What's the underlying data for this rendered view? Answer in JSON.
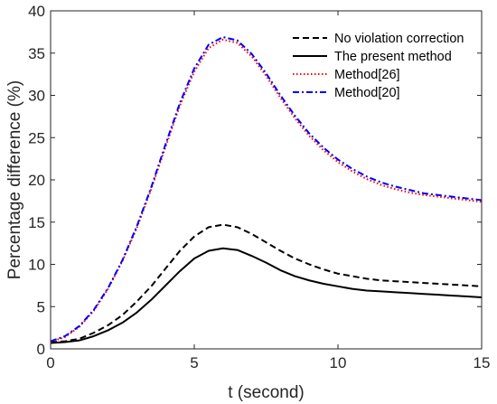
{
  "chart_data": {
    "type": "line",
    "xlabel": "t (second)",
    "ylabel": "Percentage difference (%)",
    "xlim": [
      0,
      15
    ],
    "ylim": [
      0,
      40
    ],
    "xticks": [
      0,
      5,
      10,
      15
    ],
    "yticks": [
      0,
      5,
      10,
      15,
      20,
      25,
      30,
      35,
      40
    ],
    "grid": false,
    "legend_position": "top-right",
    "series": [
      {
        "name": "No violation correction",
        "color": "#000000",
        "dash": "dashed",
        "x": [
          0,
          0.5,
          1,
          1.5,
          2,
          2.5,
          3,
          3.5,
          4,
          4.5,
          5,
          5.5,
          6,
          6.5,
          7,
          7.5,
          8,
          8.5,
          9,
          9.5,
          10,
          10.5,
          11,
          11.5,
          12,
          12.5,
          13,
          13.5,
          14,
          14.5,
          15
        ],
        "y": [
          0.8,
          0.9,
          1.2,
          1.9,
          2.8,
          4.0,
          5.6,
          7.4,
          9.5,
          11.6,
          13.3,
          14.4,
          14.7,
          14.4,
          13.6,
          12.6,
          11.6,
          10.7,
          10.0,
          9.4,
          8.9,
          8.6,
          8.3,
          8.1,
          8.0,
          7.9,
          7.8,
          7.7,
          7.6,
          7.5,
          7.4
        ]
      },
      {
        "name": "The present method",
        "color": "#000000",
        "dash": "solid",
        "x": [
          0,
          0.5,
          1,
          1.5,
          2,
          2.5,
          3,
          3.5,
          4,
          4.5,
          5,
          5.5,
          6,
          6.5,
          7,
          7.5,
          8,
          8.5,
          9,
          9.5,
          10,
          10.5,
          11,
          11.5,
          12,
          12.5,
          13,
          13.5,
          14,
          14.5,
          15
        ],
        "y": [
          0.7,
          0.8,
          1.0,
          1.5,
          2.2,
          3.1,
          4.3,
          5.8,
          7.5,
          9.2,
          10.7,
          11.6,
          11.9,
          11.7,
          11.0,
          10.2,
          9.3,
          8.6,
          8.1,
          7.7,
          7.4,
          7.1,
          6.9,
          6.8,
          6.7,
          6.6,
          6.5,
          6.4,
          6.3,
          6.2,
          6.1
        ]
      },
      {
        "name": "Method[26]",
        "color": "#ff0000",
        "dash": "dotted",
        "x": [
          0,
          0.5,
          1,
          1.5,
          2,
          2.5,
          3,
          3.5,
          4,
          4.5,
          5,
          5.5,
          6,
          6.5,
          7,
          7.5,
          8,
          8.5,
          9,
          9.5,
          10,
          10.5,
          11,
          11.5,
          12,
          12.5,
          13,
          13.5,
          14,
          14.5,
          15
        ],
        "y": [
          0.8,
          1.4,
          2.6,
          4.5,
          7.1,
          10.4,
          14.3,
          18.9,
          23.9,
          28.8,
          32.8,
          35.6,
          36.6,
          36.2,
          34.6,
          32.3,
          29.7,
          27.3,
          25.2,
          23.5,
          22.1,
          21.0,
          20.1,
          19.4,
          18.9,
          18.5,
          18.2,
          18.0,
          17.8,
          17.6,
          17.4
        ]
      },
      {
        "name": "Method[20]",
        "color": "#0000ff",
        "dash": "dashdot",
        "x": [
          0,
          0.5,
          1,
          1.5,
          2,
          2.5,
          3,
          3.5,
          4,
          4.5,
          5,
          5.5,
          6,
          6.5,
          7,
          7.5,
          8,
          8.5,
          9,
          9.5,
          10,
          10.5,
          11,
          11.5,
          12,
          12.5,
          13,
          13.5,
          14,
          14.5,
          15
        ],
        "y": [
          0.9,
          1.5,
          2.7,
          4.6,
          7.2,
          10.5,
          14.5,
          19.1,
          24.2,
          29.1,
          33.2,
          36.0,
          36.9,
          36.5,
          34.9,
          32.6,
          30.0,
          27.6,
          25.5,
          23.8,
          22.4,
          21.3,
          20.4,
          19.7,
          19.2,
          18.8,
          18.4,
          18.2,
          18.0,
          17.8,
          17.6
        ]
      }
    ]
  }
}
